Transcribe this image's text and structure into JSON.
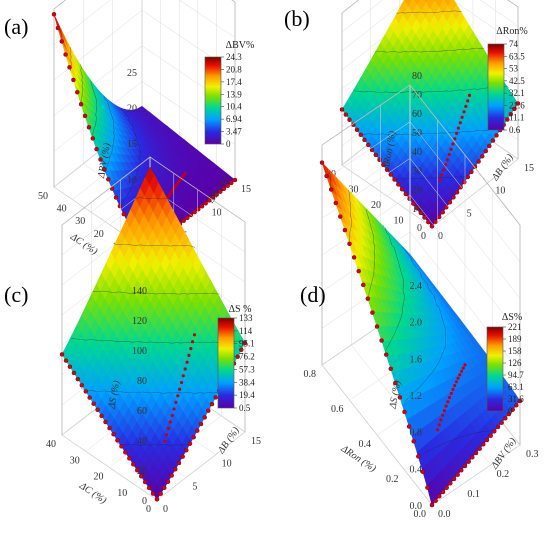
{
  "chart_data": [
    {
      "type": "surface3d",
      "panel": "(a)",
      "xlabel": "ΔC (%)",
      "ylabel": "ΔB (%)",
      "zlabel": "ΔBV (%)",
      "x_ticks": [
        "0",
        "10",
        "20",
        "30",
        "40",
        "50"
      ],
      "y_ticks": [
        "0",
        "5",
        "10",
        "15"
      ],
      "z_ticks": [
        "0",
        "5",
        "10",
        "15",
        "20",
        "25"
      ],
      "xlim": [
        0,
        50
      ],
      "ylim": [
        0,
        15
      ],
      "zlim": [
        0,
        25
      ],
      "colorbar": {
        "title": "ΔBV%",
        "ticks": [
          "24.3",
          "20.8",
          "17.4",
          "13.9",
          "10.4",
          "6.94",
          "3.47",
          "0"
        ]
      },
      "surface": {
        "corner_x0_y0": 0,
        "corner_x50_y0": 24.3,
        "corner_x0_y15": 1.5,
        "corner_x50_y15": 5
      }
    },
    {
      "type": "surface3d",
      "panel": "(b)",
      "xlabel": "ΔC (%)",
      "ylabel": "ΔB (%)",
      "zlabel": "ΔRon (%)",
      "x_ticks": [
        "0",
        "10",
        "20",
        "30",
        "40"
      ],
      "y_ticks": [
        "0",
        "5",
        "10",
        "15"
      ],
      "z_ticks": [
        "0",
        "10",
        "20",
        "30",
        "40",
        "50",
        "60",
        "70",
        "80"
      ],
      "xlim": [
        0,
        40
      ],
      "ylim": [
        0,
        15
      ],
      "zlim": [
        0,
        80
      ],
      "colorbar": {
        "title": "ΔRon%",
        "ticks": [
          "74",
          "63.5",
          "53",
          "42.5",
          "32.1",
          "21.6",
          "11.1",
          "0.6"
        ]
      },
      "surface": {
        "corner_x0_y0": 0.6,
        "corner_x40_y0": 30,
        "corner_x0_y15": 30,
        "corner_x40_y15": 74
      }
    },
    {
      "type": "surface3d",
      "panel": "(c)",
      "xlabel": "ΔC (%)",
      "ylabel": "ΔB (%)",
      "zlabel": "ΔS (%)",
      "x_ticks": [
        "0",
        "10",
        "20",
        "30",
        "40"
      ],
      "y_ticks": [
        "0",
        "5",
        "10",
        "15"
      ],
      "z_ticks": [
        "0",
        "20",
        "40",
        "60",
        "80",
        "100",
        "120",
        "140"
      ],
      "xlim": [
        0,
        40
      ],
      "ylim": [
        0,
        15
      ],
      "zlim": [
        0,
        140
      ],
      "colorbar": {
        "title": "ΔS %",
        "ticks": [
          "133",
          "114",
          "95.1",
          "76.2",
          "57.3",
          "38.4",
          "19.4",
          "0.5"
        ]
      },
      "surface": {
        "corner_x0_y0": 0.5,
        "corner_x40_y0": 55,
        "corner_x0_y15": 60,
        "corner_x40_y15": 133
      }
    },
    {
      "type": "surface3d",
      "panel": "(d)",
      "xlabel": "ΔRon (%)",
      "ylabel": "ΔBV (%)",
      "zlabel": "ΔS (%)",
      "x_ticks": [
        "0.0",
        "0.2",
        "0.4",
        "0.6",
        "0.8"
      ],
      "y_ticks": [
        "0.0",
        "0.1",
        "0.2",
        "0.3"
      ],
      "z_ticks": [
        "0.0",
        "0.4",
        "0.8",
        "1.2",
        "1.6",
        "2.0",
        "2.4"
      ],
      "xlim": [
        0,
        0.8
      ],
      "ylim": [
        0,
        0.3
      ],
      "zlim": [
        0,
        2.4
      ],
      "colorbar": {
        "title": "ΔS%",
        "ticks": [
          "221",
          "189",
          "158",
          "126",
          "94.7",
          "63.1",
          "31.6",
          "0"
        ]
      },
      "surface": {
        "corner_x0_y0": 0,
        "corner_x08_y0": 2.2,
        "corner_x0_y03": 0.5,
        "corner_x08_y03": 0.6
      }
    }
  ]
}
